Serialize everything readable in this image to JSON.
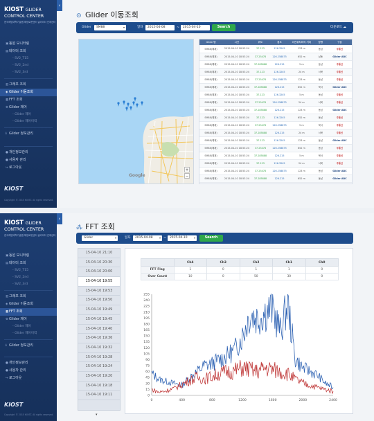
{
  "brand": {
    "line1": "KIOST",
    "line1b": "GLIDER",
    "line2": "CONTROL CENTER",
    "subtitle": "한국해양과학기술원 해양로봇센터 글라이더 관제센터",
    "footer_logo": "KIOST",
    "copyright": "Copyright © 2015 KIOST. All rights reserved."
  },
  "nav": {
    "items": [
      {
        "label": "동원 모니터링",
        "icon": "monitor-icon"
      },
      {
        "label": "데이터 조회",
        "icon": "data-icon"
      },
      {
        "label": "- SV2_T15",
        "sub": true
      },
      {
        "label": "- SV2_2nd",
        "sub": true
      },
      {
        "label": "- SV2_3rd",
        "sub": true
      },
      {
        "label": "그래프 조회",
        "icon": "graph-icon"
      },
      {
        "label": "Glider 이동조회",
        "icon": "glider-icon"
      },
      {
        "label": "FFT 조회",
        "icon": "fft-icon"
      },
      {
        "label": "Glider 제어",
        "icon": "control-icon"
      },
      {
        "label": "- Glider 제어",
        "sub": true
      },
      {
        "label": "- Glider 제어이력",
        "sub": true
      },
      {
        "label": "Glider 정보관리",
        "icon": "info-icon"
      },
      {
        "label": "개인정보관리",
        "icon": "user-icon"
      },
      {
        "label": "사용자 관리",
        "icon": "users-icon"
      },
      {
        "label": "로그아웃",
        "icon": "logout-icon"
      }
    ]
  },
  "screen1": {
    "title": "Glider 이동조회",
    "toolbar": {
      "glider_label": "Glider",
      "glider_value": "SM88",
      "period_label": "일자",
      "date_from": "2015-04-08",
      "tilde": "~",
      "date_to": "2015-04-10",
      "search_label": "Search",
      "download_label": "다운로드"
    },
    "map": {
      "zoom_in": "+",
      "zoom_out": "−",
      "google": "Google"
    },
    "table": {
      "headers": [
        "Glider명",
        "시간",
        "위도",
        "경도",
        "이전위치와의 거리",
        "방향",
        "구분"
      ],
      "rows": [
        [
          "SM88(예제)",
          "2015-04-10 18:53:24",
          "37.123",
          "126.3245",
          "123 m",
          "동남",
          "주통신"
        ],
        [
          "SM88(예제)",
          "2015-04-10 18:53:24",
          "37.25478",
          "126.258875",
          "652 m",
          "남동",
          "Glider ABC"
        ],
        [
          "SM88(예제)",
          "2015-04-10 18:53:24",
          "37.285888",
          "126.215",
          "5 m",
          "동남",
          "주통신"
        ],
        [
          "SM88(예제)",
          "2015-04-10 18:53:24",
          "37.123",
          "126.3245",
          "24 m",
          "서북",
          "주통신"
        ],
        [
          "SM88(예제)",
          "2015-04-10 18:53:24",
          "37.25478",
          "126.258875",
          "123 m",
          "동남",
          "주통신"
        ],
        [
          "SM88(예제)",
          "2015-04-10 18:53:24",
          "37.285888",
          "126.215",
          "652 m",
          "북서",
          "Glider ABC"
        ],
        [
          "SM88(예제)",
          "2015-04-10 18:53:24",
          "37.123",
          "126.3245",
          "5 m",
          "동남",
          "주통신"
        ],
        [
          "SM88(예제)",
          "2015-04-10 18:53:24",
          "37.25478",
          "126.258875",
          "24 m",
          "서북",
          "주통신"
        ],
        [
          "SM88(예제)",
          "2015-04-10 18:53:24",
          "37.285888",
          "126.215",
          "123 m",
          "동남",
          "Glider ABC"
        ],
        [
          "SM88(예제)",
          "2015-04-10 18:53:24",
          "37.123",
          "126.3245",
          "652 m",
          "동남",
          "주통신"
        ],
        [
          "SM88(예제)",
          "2015-04-10 18:53:24",
          "37.25478",
          "126.258875",
          "5 m",
          "북서",
          "주통신"
        ],
        [
          "SM88(예제)",
          "2015-04-10 18:53:24",
          "37.285888",
          "126.215",
          "24 m",
          "서북",
          "주통신"
        ],
        [
          "SM88(예제)",
          "2015-04-10 18:53:24",
          "37.123",
          "126.3245",
          "123 m",
          "동남",
          "Glider ABC"
        ],
        [
          "SM88(예제)",
          "2015-04-10 18:53:24",
          "37.25478",
          "126.258875",
          "652 m",
          "동남",
          "주통신"
        ],
        [
          "SM88(예제)",
          "2015-04-10 18:53:24",
          "37.285888",
          "126.215",
          "5 m",
          "북서",
          "주통신"
        ],
        [
          "SM88(예제)",
          "2015-04-10 18:53:24",
          "37.123",
          "126.3245",
          "24 m",
          "서북",
          "주통신"
        ],
        [
          "SM88(예제)",
          "2015-04-10 18:53:24",
          "37.25478",
          "126.258875",
          "123 m",
          "동남",
          "Glider ABC"
        ],
        [
          "SM88(예제)",
          "2015-04-10 18:53:24",
          "37.285888",
          "126.215",
          "652 m",
          "동남",
          "Glider ABC"
        ]
      ]
    }
  },
  "screen2": {
    "title": "FFT 조회",
    "toolbar": {
      "glider_value": "Glider",
      "period_label": "일자",
      "date_from": "2015-04-08",
      "tilde": "~",
      "date_to": "2015-04-10",
      "search_label": "Search"
    },
    "times": [
      "15-04-10 21:10",
      "15-04-10 20:30",
      "15-04-10 20:00",
      "15-04-10 19:55",
      "15-04-10 19:53",
      "15-04-10 19:50",
      "15-04-10 19:49",
      "15-04-10 19:45",
      "15-04-10 19:40",
      "15-04-10 19:36",
      "15-04-10 19:32",
      "15-04-10 19:28",
      "15-04-10 19:24",
      "15-04-10 19:20",
      "15-04-10 19:18",
      "15-04-10 19:11"
    ],
    "selected_index": 3,
    "fft_table": {
      "headers": [
        "",
        "Ch4",
        "Ch3",
        "Ch2",
        "Ch1",
        "Ch0"
      ],
      "rows": [
        [
          "FFT Flag",
          "1",
          "0",
          "1",
          "1",
          "0"
        ],
        [
          "Over Count",
          "10",
          "0",
          "50",
          "30",
          "0"
        ]
      ]
    }
  },
  "chart_data": {
    "type": "line",
    "x_ticks": [
      0,
      400,
      800,
      1200,
      1600,
      2000,
      2400
    ],
    "y_ticks": [
      0,
      15,
      30,
      45,
      60,
      75,
      90,
      105,
      120,
      135,
      150,
      165,
      180,
      195,
      210,
      225,
      240,
      255
    ],
    "xlim": [
      0,
      2400
    ],
    "ylim": [
      0,
      255
    ],
    "series": [
      {
        "color": "#2f63b3",
        "x": [
          0,
          100,
          200,
          300,
          400,
          500,
          600,
          700,
          800,
          900,
          1000,
          1100,
          1200,
          1300,
          1400,
          1500,
          1600,
          1700,
          1800,
          1900,
          2000,
          2100,
          2200,
          2300,
          2400
        ],
        "y": [
          55,
          40,
          35,
          30,
          25,
          45,
          60,
          75,
          80,
          90,
          100,
          115,
          150,
          205,
          195,
          210,
          220,
          160,
          230,
          90,
          70,
          60,
          50,
          30,
          20
        ]
      },
      {
        "color": "#c03a3a",
        "x": [
          0,
          100,
          200,
          300,
          400,
          500,
          600,
          700,
          800,
          900,
          1000,
          1100,
          1200,
          1300,
          1400,
          1500,
          1600,
          1700,
          1800,
          1900,
          2000,
          2100,
          2200,
          2300,
          2400
        ],
        "y": [
          15,
          8,
          12,
          18,
          28,
          38,
          45,
          42,
          48,
          55,
          60,
          62,
          70,
          65,
          60,
          70,
          65,
          60,
          55,
          40,
          30,
          25,
          20,
          15,
          10
        ]
      }
    ]
  },
  "colors": {
    "sidebar": "#1d3e73",
    "toolbar": "#1d4c8c",
    "search": "#2fa84a",
    "accent": "#2a6ab5"
  }
}
